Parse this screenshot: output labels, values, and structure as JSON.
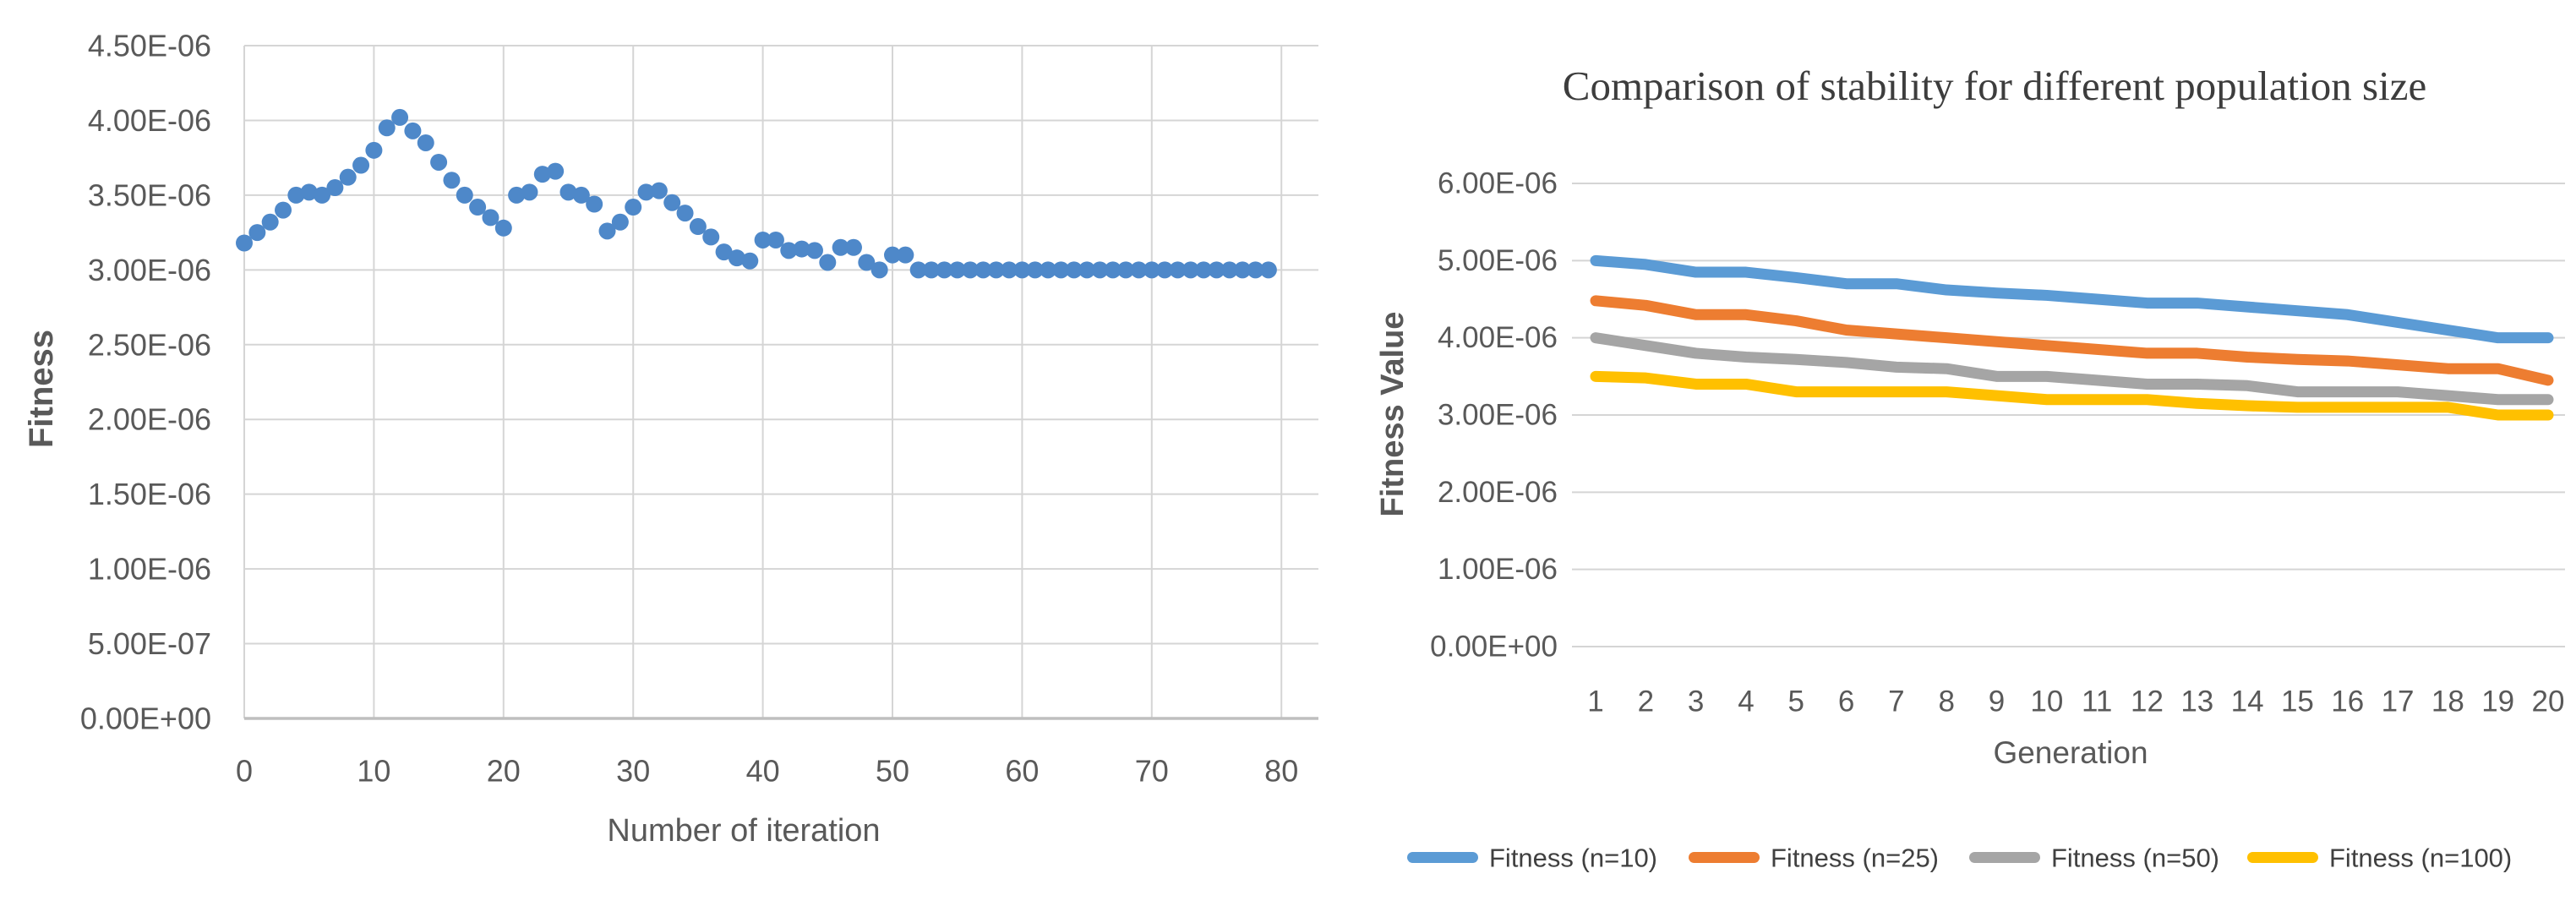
{
  "chart_data": [
    {
      "type": "scatter",
      "title": "",
      "xlabel": "Number of iteration",
      "ylabel": "Fitness",
      "x_ticks": [
        0,
        10,
        20,
        30,
        40,
        50,
        60,
        70,
        80
      ],
      "y_tick_labels_top_to_bottom": [
        "4.50E-06",
        "4.00E-06",
        "3.50E-06",
        "3.00E-06",
        "2.50E-06",
        "2.00E-06",
        "1.50E-06",
        "1.00E-06",
        "5.00E-07",
        "0.00E+00"
      ],
      "ylim": [
        0,
        4.5e-06
      ],
      "xlim": [
        0,
        83
      ],
      "grid": "both",
      "point_color": "#4E88C9",
      "x_start": 0,
      "x_step": 1,
      "values": [
        3.18e-06,
        3.25e-06,
        3.32e-06,
        3.4e-06,
        3.5e-06,
        3.52e-06,
        3.5e-06,
        3.55e-06,
        3.62e-06,
        3.7e-06,
        3.8e-06,
        3.95e-06,
        4.02e-06,
        3.93e-06,
        3.85e-06,
        3.72e-06,
        3.6e-06,
        3.5e-06,
        3.42e-06,
        3.35e-06,
        3.28e-06,
        3.5e-06,
        3.52e-06,
        3.64e-06,
        3.66e-06,
        3.52e-06,
        3.5e-06,
        3.44e-06,
        3.26e-06,
        3.32e-06,
        3.42e-06,
        3.52e-06,
        3.53e-06,
        3.45e-06,
        3.38e-06,
        3.29e-06,
        3.22e-06,
        3.12e-06,
        3.08e-06,
        3.06e-06,
        3.2e-06,
        3.2e-06,
        3.13e-06,
        3.14e-06,
        3.13e-06,
        3.05e-06,
        3.15e-06,
        3.15e-06,
        3.05e-06,
        3e-06,
        3.1e-06,
        3.1e-06,
        3e-06,
        3e-06,
        3e-06,
        3e-06,
        3e-06,
        3e-06,
        3e-06,
        3e-06,
        3e-06,
        3e-06,
        3e-06,
        3e-06,
        3e-06,
        3e-06,
        3e-06,
        3e-06,
        3e-06,
        3e-06,
        3e-06,
        3e-06,
        3e-06,
        3e-06,
        3e-06,
        3e-06,
        3e-06,
        3e-06,
        3e-06,
        3e-06
      ]
    },
    {
      "type": "line",
      "title": "Comparison of stability for different population size",
      "xlabel": "Generation",
      "ylabel": "Fitness Value",
      "categories": [
        1,
        2,
        3,
        4,
        5,
        6,
        7,
        8,
        9,
        10,
        11,
        12,
        13,
        14,
        15,
        16,
        17,
        18,
        19,
        20
      ],
      "y_tick_labels_top_to_bottom": [
        "6.00E-06",
        "5.00E-06",
        "4.00E-06",
        "3.00E-06",
        "2.00E-06",
        "1.00E-06",
        "0.00E+00"
      ],
      "ylim": [
        0,
        6e-06
      ],
      "grid": "horizontal",
      "legend_position": "bottom",
      "series": [
        {
          "name": "Fitness (n=10)",
          "color": "#5B9BD5",
          "values": [
            5e-06,
            4.95e-06,
            4.85e-06,
            4.85e-06,
            4.78e-06,
            4.7e-06,
            4.7e-06,
            4.62e-06,
            4.58e-06,
            4.55e-06,
            4.5e-06,
            4.45e-06,
            4.45e-06,
            4.4e-06,
            4.35e-06,
            4.3e-06,
            4.2e-06,
            4.1e-06,
            4e-06,
            4e-06
          ]
        },
        {
          "name": "Fitness (n=25)",
          "color": "#ED7D31",
          "values": [
            4.48e-06,
            4.42e-06,
            4.3e-06,
            4.3e-06,
            4.22e-06,
            4.1e-06,
            4.05e-06,
            4e-06,
            3.95e-06,
            3.9e-06,
            3.85e-06,
            3.8e-06,
            3.8e-06,
            3.75e-06,
            3.72e-06,
            3.7e-06,
            3.65e-06,
            3.6e-06,
            3.6e-06,
            3.45e-06
          ]
        },
        {
          "name": "Fitness (n=50)",
          "color": "#A5A5A5",
          "values": [
            4e-06,
            3.9e-06,
            3.8e-06,
            3.75e-06,
            3.72e-06,
            3.68e-06,
            3.62e-06,
            3.6e-06,
            3.5e-06,
            3.5e-06,
            3.45e-06,
            3.4e-06,
            3.4e-06,
            3.38e-06,
            3.3e-06,
            3.3e-06,
            3.3e-06,
            3.25e-06,
            3.2e-06,
            3.2e-06
          ]
        },
        {
          "name": "Fitness (n=100)",
          "color": "#FFC000",
          "values": [
            3.5e-06,
            3.48e-06,
            3.4e-06,
            3.4e-06,
            3.3e-06,
            3.3e-06,
            3.3e-06,
            3.3e-06,
            3.25e-06,
            3.2e-06,
            3.2e-06,
            3.2e-06,
            3.15e-06,
            3.12e-06,
            3.1e-06,
            3.1e-06,
            3.1e-06,
            3.1e-06,
            3e-06,
            3e-06
          ]
        }
      ]
    }
  ],
  "colors": {
    "grid": "#D5D5D5",
    "axis_line": "#BFBFBF",
    "tick_text": "#595959",
    "title_text": "#3D3D3D",
    "legend_text": "#404040"
  }
}
